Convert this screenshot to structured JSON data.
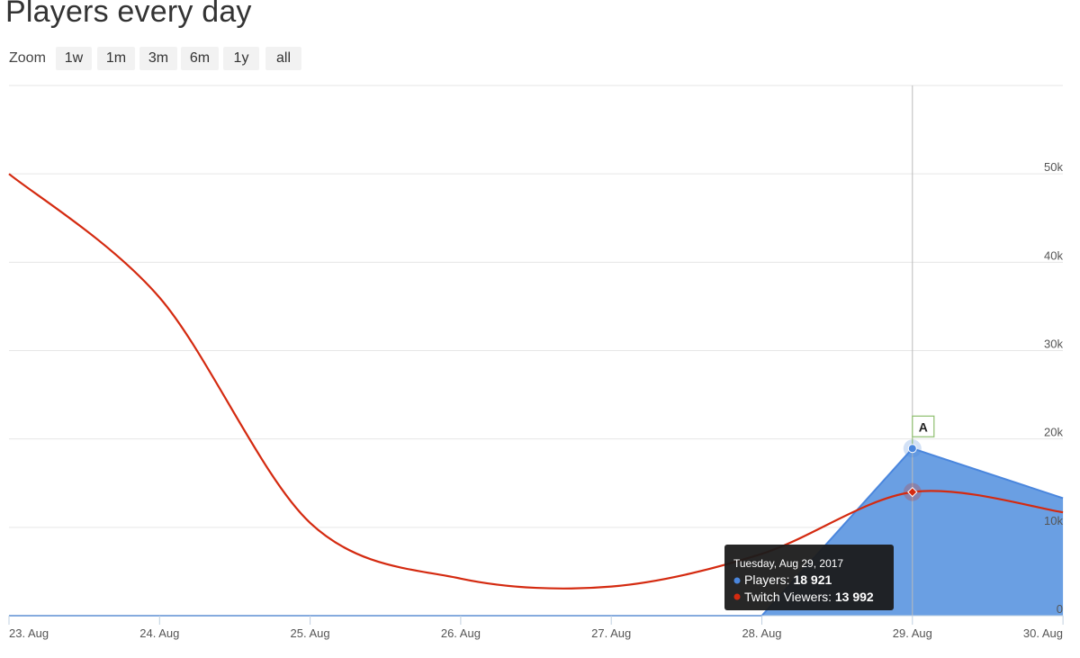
{
  "title": "Players every day",
  "zoom": {
    "label": "Zoom",
    "buttons": [
      "1w",
      "1m",
      "3m",
      "6m",
      "1y",
      "all"
    ]
  },
  "colors": {
    "players": "#4a86dd",
    "players_fill": "#6a9fe3",
    "twitch": "#d42a10",
    "grid": "#e6e6e6",
    "tooltip_bg": "#1b1b1b"
  },
  "chart_data": {
    "type": "line",
    "x": [
      "23. Aug",
      "24. Aug",
      "25. Aug",
      "26. Aug",
      "27. Aug",
      "28. Aug",
      "29. Aug",
      "30. Aug"
    ],
    "ylim": [
      0,
      60000
    ],
    "yticks": [
      "0",
      "10k",
      "20k",
      "30k",
      "40k",
      "50k"
    ],
    "series": [
      {
        "name": "Players",
        "type": "area",
        "values": [
          0,
          0,
          0,
          0,
          0,
          0,
          18921,
          13300
        ]
      },
      {
        "name": "Twitch Viewers",
        "type": "spline",
        "values": [
          50000,
          36000,
          10500,
          4200,
          3300,
          7000,
          13992,
          11700
        ]
      }
    ],
    "flag": {
      "x": "29. Aug",
      "text": "A"
    },
    "tooltip": {
      "date": "Tuesday, Aug 29, 2017",
      "players_label": "Players:",
      "players_value": "18 921",
      "twitch_label": "Twitch Viewers:",
      "twitch_value": "13 992"
    },
    "grid": true
  }
}
